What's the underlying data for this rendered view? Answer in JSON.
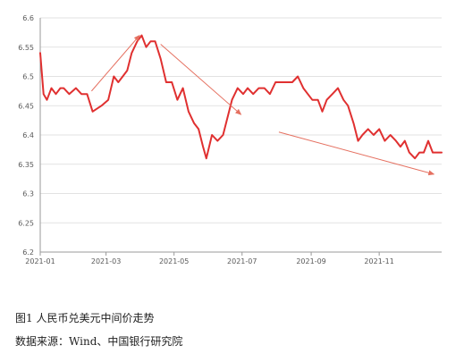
{
  "chart_data": {
    "type": "line",
    "title": "",
    "xlabel": "",
    "ylabel": "",
    "ylim": [
      6.2,
      6.6
    ],
    "yticks": [
      "6.2",
      "6.25",
      "6.3",
      "6.35",
      "6.4",
      "6.45",
      "6.5",
      "6.55",
      "6.6"
    ],
    "xlim": [
      "2021-01-01",
      "2021-12-27"
    ],
    "xticks": [
      {
        "label": "2021-01",
        "date": "2021-01-01"
      },
      {
        "label": "2021-03",
        "date": "2021-03-01"
      },
      {
        "label": "2021-05",
        "date": "2021-05-01"
      },
      {
        "label": "2021-07",
        "date": "2021-07-01"
      },
      {
        "label": "2021-09",
        "date": "2021-09-01"
      },
      {
        "label": "2021-11",
        "date": "2021-11-01"
      }
    ],
    "grid": true,
    "series": [
      {
        "color": "#e03030",
        "points": [
          [
            "2021-01-01",
            6.54
          ],
          [
            "2021-01-04",
            6.47
          ],
          [
            "2021-01-07",
            6.46
          ],
          [
            "2021-01-11",
            6.48
          ],
          [
            "2021-01-15",
            6.47
          ],
          [
            "2021-01-19",
            6.48
          ],
          [
            "2021-01-22",
            6.48
          ],
          [
            "2021-01-27",
            6.47
          ],
          [
            "2021-02-02",
            6.48
          ],
          [
            "2021-02-07",
            6.47
          ],
          [
            "2021-02-12",
            6.47
          ],
          [
            "2021-02-17",
            6.44
          ],
          [
            "2021-02-25",
            6.45
          ],
          [
            "2021-03-03",
            6.46
          ],
          [
            "2021-03-08",
            6.5
          ],
          [
            "2021-03-12",
            6.49
          ],
          [
            "2021-03-16",
            6.5
          ],
          [
            "2021-03-20",
            6.51
          ],
          [
            "2021-03-24",
            6.54
          ],
          [
            "2021-03-29",
            6.56
          ],
          [
            "2021-04-02",
            6.57
          ],
          [
            "2021-04-06",
            6.55
          ],
          [
            "2021-04-10",
            6.56
          ],
          [
            "2021-04-14",
            6.56
          ],
          [
            "2021-04-19",
            6.53
          ],
          [
            "2021-04-24",
            6.49
          ],
          [
            "2021-04-29",
            6.49
          ],
          [
            "2021-05-04",
            6.46
          ],
          [
            "2021-05-09",
            6.48
          ],
          [
            "2021-05-14",
            6.44
          ],
          [
            "2021-05-19",
            6.42
          ],
          [
            "2021-05-23",
            6.41
          ],
          [
            "2021-05-27",
            6.38
          ],
          [
            "2021-05-30",
            6.36
          ],
          [
            "2021-06-04",
            6.4
          ],
          [
            "2021-06-09",
            6.39
          ],
          [
            "2021-06-14",
            6.4
          ],
          [
            "2021-06-18",
            6.43
          ],
          [
            "2021-06-22",
            6.46
          ],
          [
            "2021-06-27",
            6.48
          ],
          [
            "2021-07-02",
            6.47
          ],
          [
            "2021-07-06",
            6.48
          ],
          [
            "2021-07-11",
            6.47
          ],
          [
            "2021-07-16",
            6.48
          ],
          [
            "2021-07-21",
            6.48
          ],
          [
            "2021-07-26",
            6.47
          ],
          [
            "2021-07-31",
            6.49
          ],
          [
            "2021-08-05",
            6.49
          ],
          [
            "2021-08-10",
            6.49
          ],
          [
            "2021-08-15",
            6.49
          ],
          [
            "2021-08-20",
            6.5
          ],
          [
            "2021-08-25",
            6.48
          ],
          [
            "2021-08-29",
            6.47
          ],
          [
            "2021-09-02",
            6.46
          ],
          [
            "2021-09-07",
            6.46
          ],
          [
            "2021-09-11",
            6.44
          ],
          [
            "2021-09-15",
            6.46
          ],
          [
            "2021-09-20",
            6.47
          ],
          [
            "2021-09-25",
            6.48
          ],
          [
            "2021-09-30",
            6.46
          ],
          [
            "2021-10-04",
            6.45
          ],
          [
            "2021-10-09",
            6.42
          ],
          [
            "2021-10-13",
            6.39
          ],
          [
            "2021-10-17",
            6.4
          ],
          [
            "2021-10-22",
            6.41
          ],
          [
            "2021-10-27",
            6.4
          ],
          [
            "2021-11-01",
            6.41
          ],
          [
            "2021-11-06",
            6.39
          ],
          [
            "2021-11-11",
            6.4
          ],
          [
            "2021-11-16",
            6.39
          ],
          [
            "2021-11-20",
            6.38
          ],
          [
            "2021-11-24",
            6.39
          ],
          [
            "2021-11-28",
            6.37
          ],
          [
            "2021-12-03",
            6.36
          ],
          [
            "2021-12-07",
            6.37
          ],
          [
            "2021-12-11",
            6.37
          ],
          [
            "2021-12-15",
            6.39
          ],
          [
            "2021-12-19",
            6.37
          ],
          [
            "2021-12-23",
            6.37
          ],
          [
            "2021-12-27",
            6.37
          ]
        ]
      }
    ],
    "annotations": [
      {
        "type": "trend-arrow",
        "from": [
          "2021-02-16",
          6.475
        ],
        "to": [
          "2021-03-31",
          6.57
        ]
      },
      {
        "type": "trend-arrow",
        "from": [
          "2021-04-19",
          6.555
        ],
        "to": [
          "2021-06-30",
          6.435
        ]
      },
      {
        "type": "trend-arrow",
        "from": [
          "2021-08-03",
          6.405
        ],
        "to": [
          "2021-12-20",
          6.333
        ]
      }
    ]
  },
  "caption": {
    "title": "图1 人民币兑美元中间价走势",
    "source": "数据来源：Wind、中国银行研究院"
  },
  "colors": {
    "series": "#e03030",
    "arrow": "#e57060",
    "grid": "#d9d9d9",
    "axis": "#9a9a9a",
    "tick_text": "#595959"
  }
}
